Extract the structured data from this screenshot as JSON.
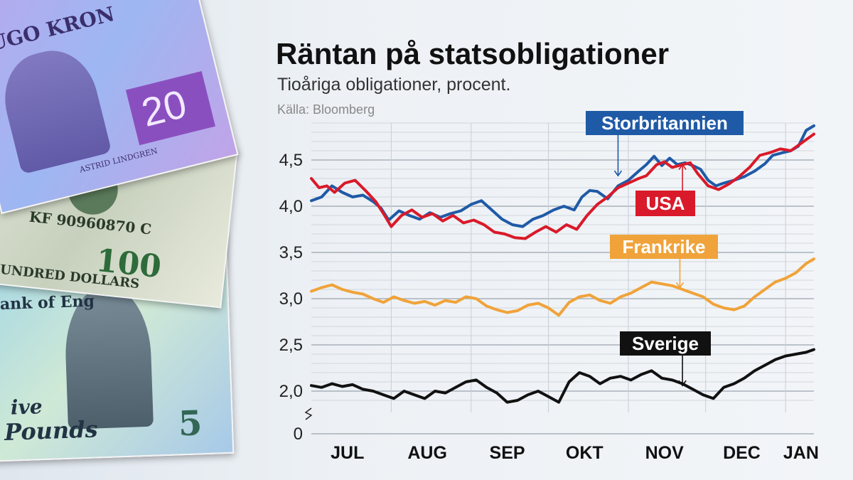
{
  "title": "Räntan på statsobligationer",
  "subtitle": "Tioåriga obligationer, procent.",
  "source": "Källa: Bloomberg",
  "banknotes": {
    "sek_top_text": "UGO KRON",
    "sek_value": "20",
    "sek_signature": "ASTRID LINDGREN",
    "usd_serial": "KF 90960870 C",
    "usd_value": "100",
    "usd_words": "HUNDRED DOLLARS",
    "gbp_text": "ive",
    "gbp_pounds": "Pounds",
    "gbp_value": "5",
    "gbp_bank": "ank of Eng"
  },
  "chart_data": {
    "type": "line",
    "title": "Räntan på statsobligationer",
    "subtitle": "Tioåriga obligationer, procent.",
    "source": "Källa: Bloomberg",
    "x_range": [
      "2023-07-01",
      "2024-01-12"
    ],
    "x_ticks": [
      {
        "label": "JUL",
        "date": "2023-07-15"
      },
      {
        "label": "AUG",
        "date": "2023-08-15"
      },
      {
        "label": "SEP",
        "date": "2023-09-15"
      },
      {
        "label": "OKT",
        "date": "2023-10-15"
      },
      {
        "label": "NOV",
        "date": "2023-11-15"
      },
      {
        "label": "DEC",
        "date": "2023-12-15"
      },
      {
        "label": "JAN",
        "date": "2024-01-07"
      }
    ],
    "month_boundaries": [
      "2023-08-01",
      "2023-09-01",
      "2023-10-01",
      "2023-11-01",
      "2023-12-01",
      "2024-01-01"
    ],
    "y_range": [
      1.75,
      4.9
    ],
    "y_ticks": [
      2.0,
      2.5,
      3.0,
      3.5,
      4.0,
      4.5
    ],
    "y_tick_labels": [
      "2,0",
      "2,5",
      "3,0",
      "3,5",
      "4,0",
      "4,5"
    ],
    "y_zero_label": "0",
    "axis_break": true,
    "grid": true,
    "series": [
      {
        "name": "Storbritannien",
        "color": "#1f5aa6",
        "label_pos": "top",
        "arrow_to": [
          "2023-10-28",
          4.33
        ],
        "points": [
          [
            "2023-07-01",
            4.06
          ],
          [
            "2023-07-05",
            4.1
          ],
          [
            "2023-07-09",
            4.22
          ],
          [
            "2023-07-13",
            4.15
          ],
          [
            "2023-07-17",
            4.1
          ],
          [
            "2023-07-21",
            4.12
          ],
          [
            "2023-07-25",
            4.05
          ],
          [
            "2023-07-28",
            3.98
          ],
          [
            "2023-07-31",
            3.85
          ],
          [
            "2023-08-04",
            3.95
          ],
          [
            "2023-08-08",
            3.9
          ],
          [
            "2023-08-12",
            3.86
          ],
          [
            "2023-08-16",
            3.93
          ],
          [
            "2023-08-20",
            3.88
          ],
          [
            "2023-08-24",
            3.92
          ],
          [
            "2023-08-28",
            3.95
          ],
          [
            "2023-09-01",
            4.02
          ],
          [
            "2023-09-05",
            4.06
          ],
          [
            "2023-09-09",
            3.96
          ],
          [
            "2023-09-13",
            3.86
          ],
          [
            "2023-09-17",
            3.8
          ],
          [
            "2023-09-21",
            3.78
          ],
          [
            "2023-09-25",
            3.86
          ],
          [
            "2023-09-29",
            3.9
          ],
          [
            "2023-10-03",
            3.96
          ],
          [
            "2023-10-07",
            4.0
          ],
          [
            "2023-10-11",
            3.96
          ],
          [
            "2023-10-14",
            4.1
          ],
          [
            "2023-10-17",
            4.17
          ],
          [
            "2023-10-20",
            4.16
          ],
          [
            "2023-10-24",
            4.08
          ],
          [
            "2023-10-28",
            4.22
          ],
          [
            "2023-11-01",
            4.28
          ],
          [
            "2023-11-05",
            4.38
          ],
          [
            "2023-11-08",
            4.45
          ],
          [
            "2023-11-11",
            4.54
          ],
          [
            "2023-11-14",
            4.44
          ],
          [
            "2023-11-17",
            4.52
          ],
          [
            "2023-11-20",
            4.45
          ],
          [
            "2023-11-23",
            4.47
          ],
          [
            "2023-11-26",
            4.44
          ],
          [
            "2023-11-29",
            4.4
          ],
          [
            "2023-12-02",
            4.28
          ],
          [
            "2023-12-05",
            4.22
          ],
          [
            "2023-12-08",
            4.25
          ],
          [
            "2023-12-12",
            4.28
          ],
          [
            "2023-12-16",
            4.32
          ],
          [
            "2023-12-20",
            4.38
          ],
          [
            "2023-12-24",
            4.46
          ],
          [
            "2023-12-27",
            4.55
          ],
          [
            "2023-12-31",
            4.58
          ],
          [
            "2024-01-03",
            4.6
          ],
          [
            "2024-01-06",
            4.65
          ],
          [
            "2024-01-09",
            4.82
          ],
          [
            "2024-01-12",
            4.87
          ]
        ]
      },
      {
        "name": "USA",
        "color": "#d91a2a",
        "label_pos": "bottom",
        "arrow_to": [
          "2023-11-22",
          4.45
        ],
        "points": [
          [
            "2023-07-01",
            4.3
          ],
          [
            "2023-07-04",
            4.2
          ],
          [
            "2023-07-07",
            4.22
          ],
          [
            "2023-07-10",
            4.15
          ],
          [
            "2023-07-14",
            4.25
          ],
          [
            "2023-07-18",
            4.28
          ],
          [
            "2023-07-22",
            4.17
          ],
          [
            "2023-07-26",
            4.05
          ],
          [
            "2023-07-29",
            3.92
          ],
          [
            "2023-08-01",
            3.78
          ],
          [
            "2023-08-05",
            3.9
          ],
          [
            "2023-08-09",
            3.96
          ],
          [
            "2023-08-13",
            3.88
          ],
          [
            "2023-08-17",
            3.92
          ],
          [
            "2023-08-21",
            3.84
          ],
          [
            "2023-08-25",
            3.9
          ],
          [
            "2023-08-29",
            3.82
          ],
          [
            "2023-09-02",
            3.85
          ],
          [
            "2023-09-06",
            3.8
          ],
          [
            "2023-09-10",
            3.72
          ],
          [
            "2023-09-14",
            3.7
          ],
          [
            "2023-09-18",
            3.66
          ],
          [
            "2023-09-22",
            3.65
          ],
          [
            "2023-09-26",
            3.72
          ],
          [
            "2023-09-30",
            3.78
          ],
          [
            "2023-10-04",
            3.72
          ],
          [
            "2023-10-08",
            3.8
          ],
          [
            "2023-10-12",
            3.75
          ],
          [
            "2023-10-16",
            3.9
          ],
          [
            "2023-10-20",
            4.02
          ],
          [
            "2023-10-24",
            4.1
          ],
          [
            "2023-10-28",
            4.2
          ],
          [
            "2023-11-01",
            4.25
          ],
          [
            "2023-11-05",
            4.3
          ],
          [
            "2023-11-08",
            4.33
          ],
          [
            "2023-11-12",
            4.45
          ],
          [
            "2023-11-15",
            4.48
          ],
          [
            "2023-11-18",
            4.42
          ],
          [
            "2023-11-22",
            4.45
          ],
          [
            "2023-11-25",
            4.47
          ],
          [
            "2023-11-28",
            4.35
          ],
          [
            "2023-12-02",
            4.22
          ],
          [
            "2023-12-06",
            4.18
          ],
          [
            "2023-12-10",
            4.24
          ],
          [
            "2023-12-14",
            4.32
          ],
          [
            "2023-12-18",
            4.42
          ],
          [
            "2023-12-22",
            4.55
          ],
          [
            "2023-12-26",
            4.58
          ],
          [
            "2023-12-30",
            4.62
          ],
          [
            "2024-01-03",
            4.6
          ],
          [
            "2024-01-06",
            4.66
          ],
          [
            "2024-01-09",
            4.72
          ],
          [
            "2024-01-12",
            4.78
          ]
        ]
      },
      {
        "name": "Frankrike",
        "color": "#f0a33a",
        "label_pos": "top",
        "arrow_to": [
          "2023-11-21",
          3.12
        ],
        "points": [
          [
            "2023-07-01",
            3.08
          ],
          [
            "2023-07-05",
            3.12
          ],
          [
            "2023-07-09",
            3.15
          ],
          [
            "2023-07-13",
            3.1
          ],
          [
            "2023-07-17",
            3.07
          ],
          [
            "2023-07-21",
            3.05
          ],
          [
            "2023-07-25",
            3.0
          ],
          [
            "2023-07-29",
            2.96
          ],
          [
            "2023-08-02",
            3.02
          ],
          [
            "2023-08-06",
            2.98
          ],
          [
            "2023-08-10",
            2.95
          ],
          [
            "2023-08-14",
            2.97
          ],
          [
            "2023-08-18",
            2.93
          ],
          [
            "2023-08-22",
            2.98
          ],
          [
            "2023-08-26",
            2.96
          ],
          [
            "2023-08-30",
            3.02
          ],
          [
            "2023-09-03",
            3.0
          ],
          [
            "2023-09-07",
            2.92
          ],
          [
            "2023-09-11",
            2.88
          ],
          [
            "2023-09-15",
            2.85
          ],
          [
            "2023-09-19",
            2.87
          ],
          [
            "2023-09-23",
            2.93
          ],
          [
            "2023-09-27",
            2.95
          ],
          [
            "2023-10-01",
            2.9
          ],
          [
            "2023-10-05",
            2.82
          ],
          [
            "2023-10-09",
            2.96
          ],
          [
            "2023-10-13",
            3.02
          ],
          [
            "2023-10-17",
            3.04
          ],
          [
            "2023-10-21",
            2.98
          ],
          [
            "2023-10-25",
            2.95
          ],
          [
            "2023-10-29",
            3.02
          ],
          [
            "2023-11-02",
            3.06
          ],
          [
            "2023-11-06",
            3.12
          ],
          [
            "2023-11-10",
            3.18
          ],
          [
            "2023-11-14",
            3.16
          ],
          [
            "2023-11-18",
            3.14
          ],
          [
            "2023-11-22",
            3.1
          ],
          [
            "2023-11-26",
            3.06
          ],
          [
            "2023-11-30",
            3.02
          ],
          [
            "2023-12-04",
            2.94
          ],
          [
            "2023-12-08",
            2.9
          ],
          [
            "2023-12-12",
            2.88
          ],
          [
            "2023-12-16",
            2.92
          ],
          [
            "2023-12-20",
            3.02
          ],
          [
            "2023-12-24",
            3.1
          ],
          [
            "2023-12-28",
            3.18
          ],
          [
            "2024-01-01",
            3.22
          ],
          [
            "2024-01-05",
            3.28
          ],
          [
            "2024-01-09",
            3.38
          ],
          [
            "2024-01-12",
            3.43
          ]
        ]
      },
      {
        "name": "Sverige",
        "color": "#111111",
        "label_pos": "top",
        "arrow_to": [
          "2023-11-22",
          2.06
        ],
        "points": [
          [
            "2023-07-01",
            2.06
          ],
          [
            "2023-07-05",
            2.04
          ],
          [
            "2023-07-09",
            2.08
          ],
          [
            "2023-07-13",
            2.05
          ],
          [
            "2023-07-17",
            2.07
          ],
          [
            "2023-07-21",
            2.02
          ],
          [
            "2023-07-25",
            2.0
          ],
          [
            "2023-07-29",
            1.96
          ],
          [
            "2023-08-02",
            1.92
          ],
          [
            "2023-08-06",
            2.0
          ],
          [
            "2023-08-10",
            1.96
          ],
          [
            "2023-08-14",
            1.92
          ],
          [
            "2023-08-18",
            2.0
          ],
          [
            "2023-08-22",
            1.98
          ],
          [
            "2023-08-26",
            2.04
          ],
          [
            "2023-08-30",
            2.1
          ],
          [
            "2023-09-03",
            2.12
          ],
          [
            "2023-09-07",
            2.04
          ],
          [
            "2023-09-11",
            1.98
          ],
          [
            "2023-09-15",
            1.88
          ],
          [
            "2023-09-19",
            1.9
          ],
          [
            "2023-09-23",
            1.96
          ],
          [
            "2023-09-27",
            2.0
          ],
          [
            "2023-10-01",
            1.94
          ],
          [
            "2023-10-05",
            1.88
          ],
          [
            "2023-10-09",
            2.1
          ],
          [
            "2023-10-13",
            2.2
          ],
          [
            "2023-10-17",
            2.16
          ],
          [
            "2023-10-21",
            2.08
          ],
          [
            "2023-10-25",
            2.14
          ],
          [
            "2023-10-29",
            2.16
          ],
          [
            "2023-11-02",
            2.12
          ],
          [
            "2023-11-06",
            2.18
          ],
          [
            "2023-11-10",
            2.22
          ],
          [
            "2023-11-14",
            2.14
          ],
          [
            "2023-11-18",
            2.12
          ],
          [
            "2023-11-22",
            2.08
          ],
          [
            "2023-11-26",
            2.02
          ],
          [
            "2023-11-30",
            1.96
          ],
          [
            "2023-12-04",
            1.92
          ],
          [
            "2023-12-08",
            2.04
          ],
          [
            "2023-12-12",
            2.08
          ],
          [
            "2023-12-16",
            2.14
          ],
          [
            "2023-12-20",
            2.22
          ],
          [
            "2023-12-24",
            2.28
          ],
          [
            "2023-12-28",
            2.34
          ],
          [
            "2024-01-01",
            2.38
          ],
          [
            "2024-01-05",
            2.4
          ],
          [
            "2024-01-09",
            2.42
          ],
          [
            "2024-01-12",
            2.45
          ]
        ]
      }
    ]
  }
}
